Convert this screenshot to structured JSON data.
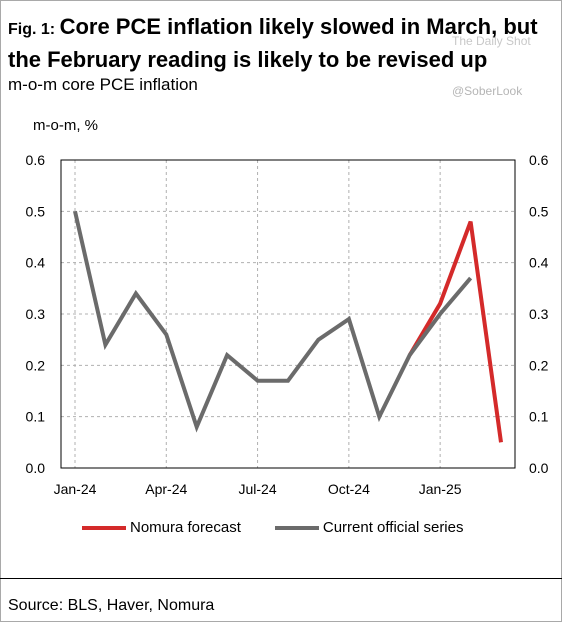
{
  "title": {
    "fig_label": "Fig. 1:",
    "text": "Core PCE inflation likely slowed in March, but the February reading is likely to be revised up"
  },
  "subtitle": "m-o-m core PCE inflation",
  "watermarks": [
    "The Daily Shot",
    "@SoberLook"
  ],
  "source": "Source: BLS, Haver, Nomura",
  "chart_data": {
    "type": "line",
    "ylabel": "m-o-m, %",
    "ylim": [
      0,
      0.6
    ],
    "y_ticks": [
      "0.0",
      "0.1",
      "0.2",
      "0.3",
      "0.4",
      "0.5",
      "0.6"
    ],
    "x": [
      "Jan-24",
      "Feb-24",
      "Mar-24",
      "Apr-24",
      "May-24",
      "Jun-24",
      "Jul-24",
      "Aug-24",
      "Sep-24",
      "Oct-24",
      "Nov-24",
      "Dec-24",
      "Jan-25",
      "Feb-25",
      "Mar-25"
    ],
    "x_tick_labels": [
      "Jan-24",
      "Apr-24",
      "Jul-24",
      "Oct-24",
      "Jan-25"
    ],
    "series": [
      {
        "name": "Nomura forecast",
        "color": "#d42a2a",
        "values": [
          null,
          null,
          null,
          null,
          null,
          null,
          null,
          null,
          null,
          null,
          null,
          0.22,
          0.32,
          0.48,
          0.05
        ]
      },
      {
        "name": "Current official series",
        "color": "#6b6b6b",
        "values": [
          0.5,
          0.24,
          0.34,
          0.26,
          0.08,
          0.22,
          0.17,
          0.17,
          0.25,
          0.29,
          0.1,
          0.22,
          0.3,
          0.37,
          null
        ]
      }
    ],
    "grid": true,
    "legend_position": "bottom"
  }
}
